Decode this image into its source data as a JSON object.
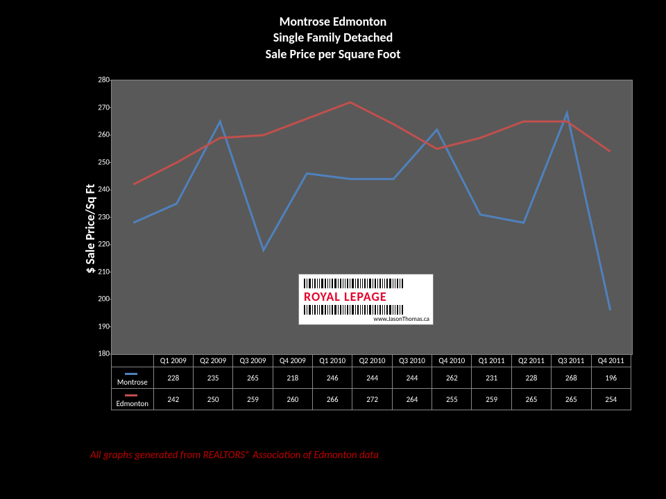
{
  "title": {
    "line1": "Montrose Edmonton",
    "line2": "Single Family Detached",
    "line3": "Sale Price per Square Foot",
    "fontsize": 18,
    "color": "#ffffff"
  },
  "chart": {
    "type": "line",
    "plot_bg": "#595959",
    "page_bg": "#000000",
    "grid_color": "#878787",
    "ylabel": "$ Sale Price/Sq Ft",
    "ylabel_fontsize": 18,
    "ylim": [
      180,
      280
    ],
    "ytick_step": 10,
    "yticks": [
      180,
      190,
      200,
      210,
      220,
      230,
      240,
      250,
      260,
      270,
      280
    ],
    "categories": [
      "Q1 2009",
      "Q2 2009",
      "Q3 2009",
      "Q4 2009",
      "Q1 2010",
      "Q2 2010",
      "Q3 2010",
      "Q4 2010",
      "Q1 2011",
      "Q2 2011",
      "Q3 2011",
      "Q4 2011"
    ],
    "series": [
      {
        "name": "Montrose",
        "color": "#4f81bd",
        "line_width": 3,
        "values": [
          228,
          235,
          265,
          218,
          246,
          244,
          244,
          262,
          231,
          228,
          268,
          196
        ]
      },
      {
        "name": "Edmonton",
        "color": "#c0504d",
        "line_width": 3,
        "values": [
          242,
          250,
          259,
          260,
          266,
          272,
          264,
          255,
          259,
          265,
          265,
          254
        ]
      }
    ]
  },
  "footer": {
    "text": "All graphs generated from REALTORS® Association of Edmonton data",
    "color": "#c00000",
    "fontsize": 15
  },
  "logo": {
    "brand": "ROYAL LEPAGE",
    "url": "www.JasonThomas.ca",
    "brand_color": "#e4002b"
  }
}
